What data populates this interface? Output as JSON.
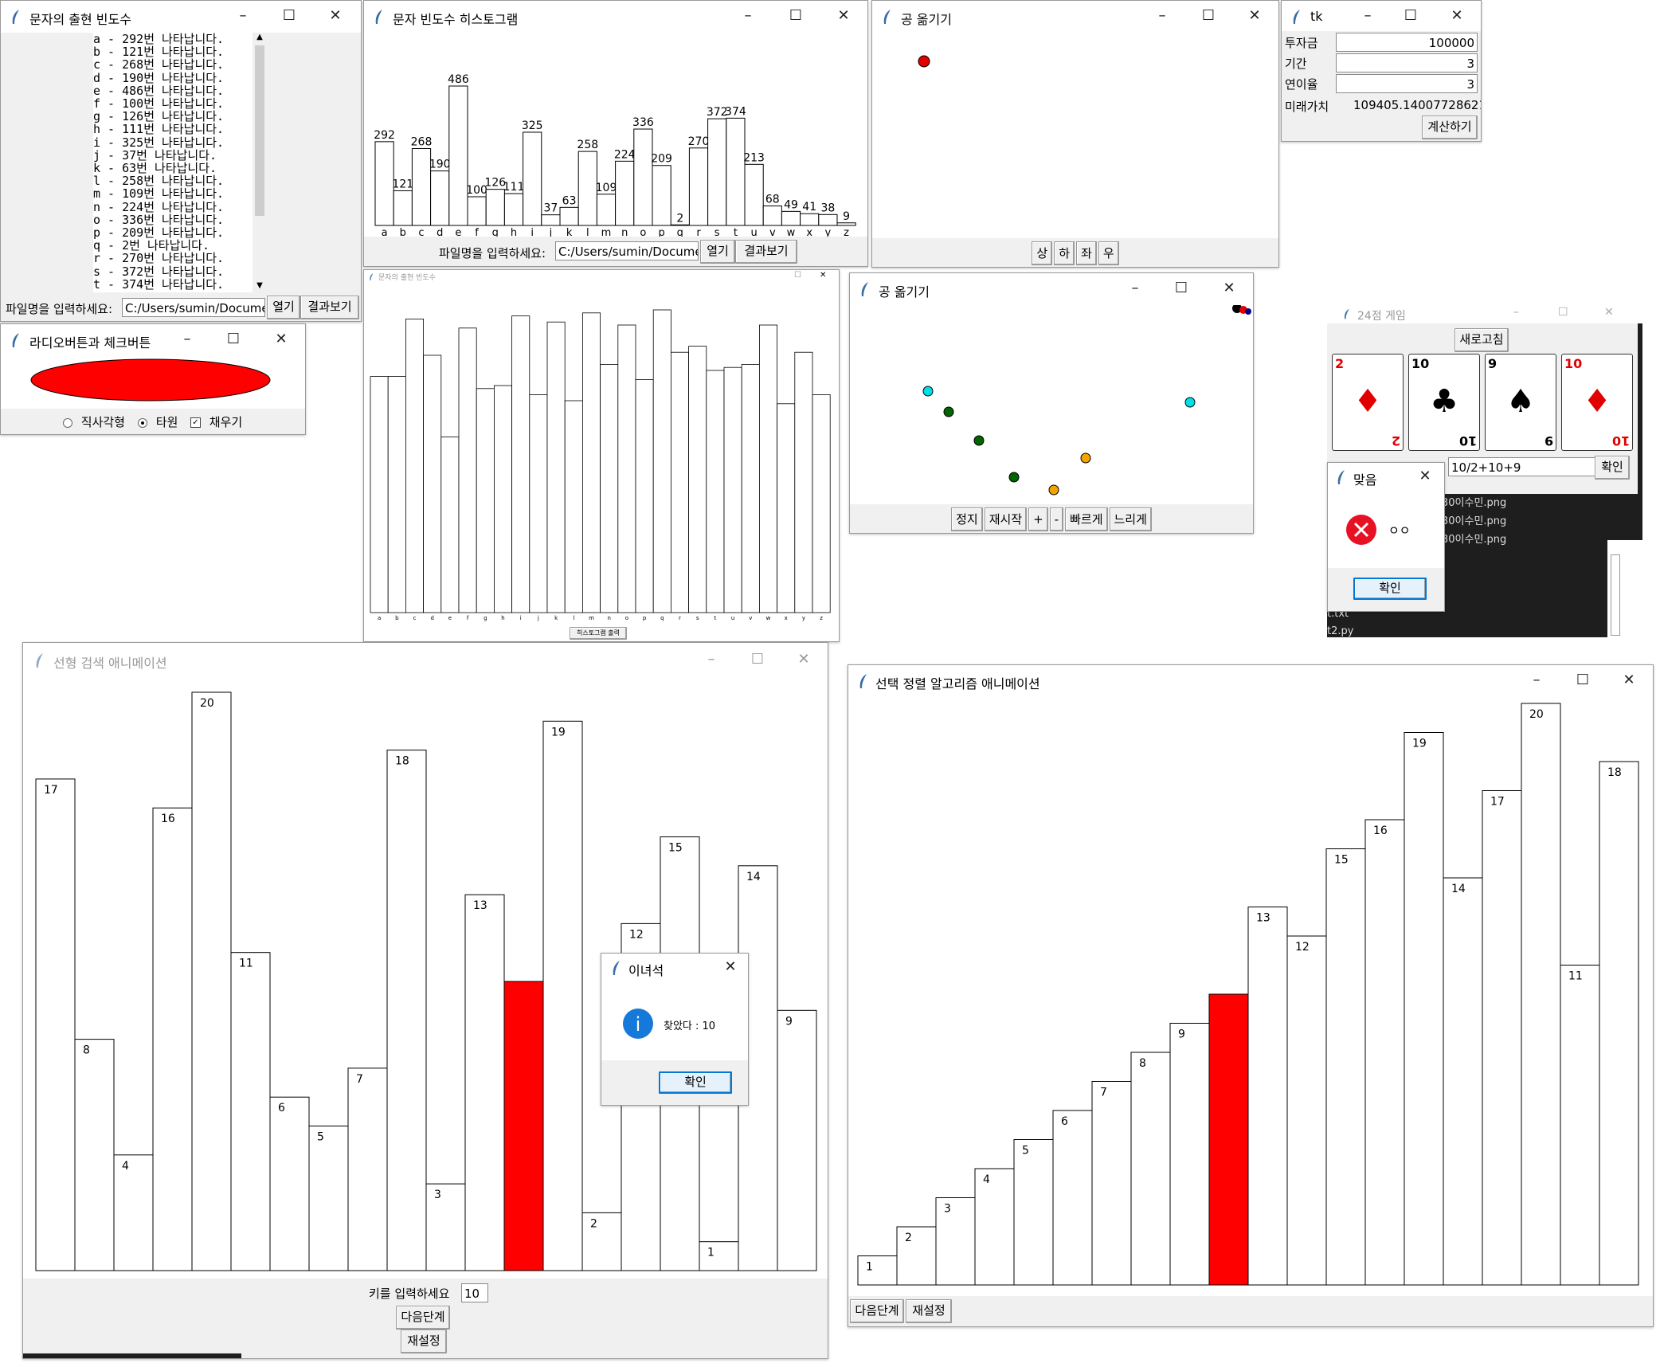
{
  "freq_text": {
    "title": "문자의 출현 빈도수",
    "lines": [
      "a - 292번 나타납니다.",
      "b - 121번 나타납니다.",
      "c - 268번 나타납니다.",
      "d - 190번 나타납니다.",
      "e - 486번 나타납니다.",
      "f - 100번 나타납니다.",
      "g - 126번 나타납니다.",
      "h - 111번 나타납니다.",
      "i - 325번 나타납니다.",
      "j - 37번 나타납니다.",
      "k - 63번 나타납니다.",
      "l - 258번 나타납니다.",
      "m - 109번 나타납니다.",
      "n - 224번 나타납니다.",
      "o - 336번 나타납니다.",
      "p - 209번 나타납니다.",
      "q - 2번 나타납니다.",
      "r - 270번 나타납니다.",
      "s - 372번 나타납니다.",
      "t - 374번 나타납니다."
    ],
    "file_label": "파일명을 입력하세요:",
    "file_value": "C:/Users/sumin/Documen",
    "open_btn": "열기",
    "result_btn": "결과보기"
  },
  "histogram": {
    "title": "문자 빈도수 히스토그램",
    "file_label": "파일명을 입력하세요:",
    "file_value": "C:/Users/sumin/Documen",
    "open_btn": "열기",
    "result_btn": "결과보기",
    "chart_data": {
      "type": "bar",
      "categories": [
        "a",
        "b",
        "c",
        "d",
        "e",
        "f",
        "g",
        "h",
        "i",
        "j",
        "k",
        "l",
        "m",
        "n",
        "o",
        "p",
        "q",
        "r",
        "s",
        "t",
        "u",
        "v",
        "w",
        "x",
        "y",
        "z"
      ],
      "values": [
        292,
        121,
        268,
        190,
        486,
        100,
        126,
        111,
        325,
        37,
        63,
        258,
        109,
        224,
        336,
        209,
        2,
        270,
        372,
        374,
        213,
        68,
        49,
        41,
        38,
        9
      ]
    }
  },
  "ball1": {
    "title": "공 옮기기",
    "buttons": [
      "상",
      "하",
      "좌",
      "우"
    ],
    "ball_color": "#e00000"
  },
  "tk": {
    "title": "tk",
    "invest_label": "투자금",
    "invest_value": "100000",
    "period_label": "기간",
    "period_value": "3",
    "rate_label": "연이율",
    "rate_value": "3",
    "future_label": "미래가치",
    "future_value": "109405.14007728621",
    "calc_btn": "계산하기"
  },
  "radio": {
    "title": "라디오버튼과 체크버튼",
    "opt_rect": "직사각형",
    "opt_oval": "타원",
    "opt_fill": "채우기",
    "fill_color": "#ff0000"
  },
  "hist2": {
    "title": "문자의 출현 빈도수",
    "button": "히스토그램 출력",
    "categories": [
      "a",
      "b",
      "c",
      "d",
      "e",
      "f",
      "g",
      "h",
      "i",
      "j",
      "k",
      "l",
      "m",
      "n",
      "o",
      "p",
      "q",
      "r",
      "s",
      "t",
      "u",
      "v",
      "w",
      "x",
      "y",
      "z"
    ]
  },
  "ball2": {
    "title": "공 옮기기",
    "buttons": [
      "정지",
      "재시작",
      "+",
      "-",
      "빠르게",
      "느리게"
    ]
  },
  "game24": {
    "title": "24점 게임",
    "refresh_btn": "새로고침",
    "expr_value": "10/2+10+9",
    "ok_btn": "확인",
    "cards": [
      {
        "rank": "2",
        "suit": "♦",
        "color": "#e00000"
      },
      {
        "rank": "10",
        "suit": "♣",
        "color": "#000000"
      },
      {
        "rank": "9",
        "suit": "♠",
        "color": "#000000"
      },
      {
        "rank": "10",
        "suit": "♦",
        "color": "#e00000"
      }
    ],
    "files": [
      "30이수민.png",
      "30이수민.png",
      "30이수민.png"
    ],
    "files_bottom": [
      "t.txt",
      "t2.py"
    ]
  },
  "msg_correct": {
    "title": "맞음",
    "text": "ㅇㅇ",
    "ok_btn": "확인"
  },
  "linear": {
    "title": "선형 검색 애니메이션",
    "key_label": "키를 입력하세요",
    "key_value": "10",
    "next_btn": "다음단계",
    "reset_btn": "재설정",
    "chart_data": {
      "type": "bar",
      "values": [
        17,
        8,
        4,
        16,
        20,
        11,
        6,
        5,
        7,
        18,
        3,
        13,
        10,
        19,
        2,
        12,
        15,
        1,
        14,
        9
      ],
      "highlight_index": 12,
      "highlight_color": "#ff0000"
    }
  },
  "msg_found": {
    "title": "이녀석",
    "text": "찾았다 : 10",
    "ok_btn": "확인"
  },
  "selection": {
    "title": "선택 정렬 알고리즘 애니메이션",
    "next_btn": "다음단계",
    "reset_btn": "재설정",
    "chart_data": {
      "type": "bar",
      "values": [
        1,
        2,
        3,
        4,
        5,
        6,
        7,
        8,
        9,
        10,
        13,
        12,
        15,
        16,
        19,
        14,
        17,
        20,
        11,
        18
      ],
      "highlight_index": 9,
      "highlight_color": "#ff0000"
    }
  }
}
